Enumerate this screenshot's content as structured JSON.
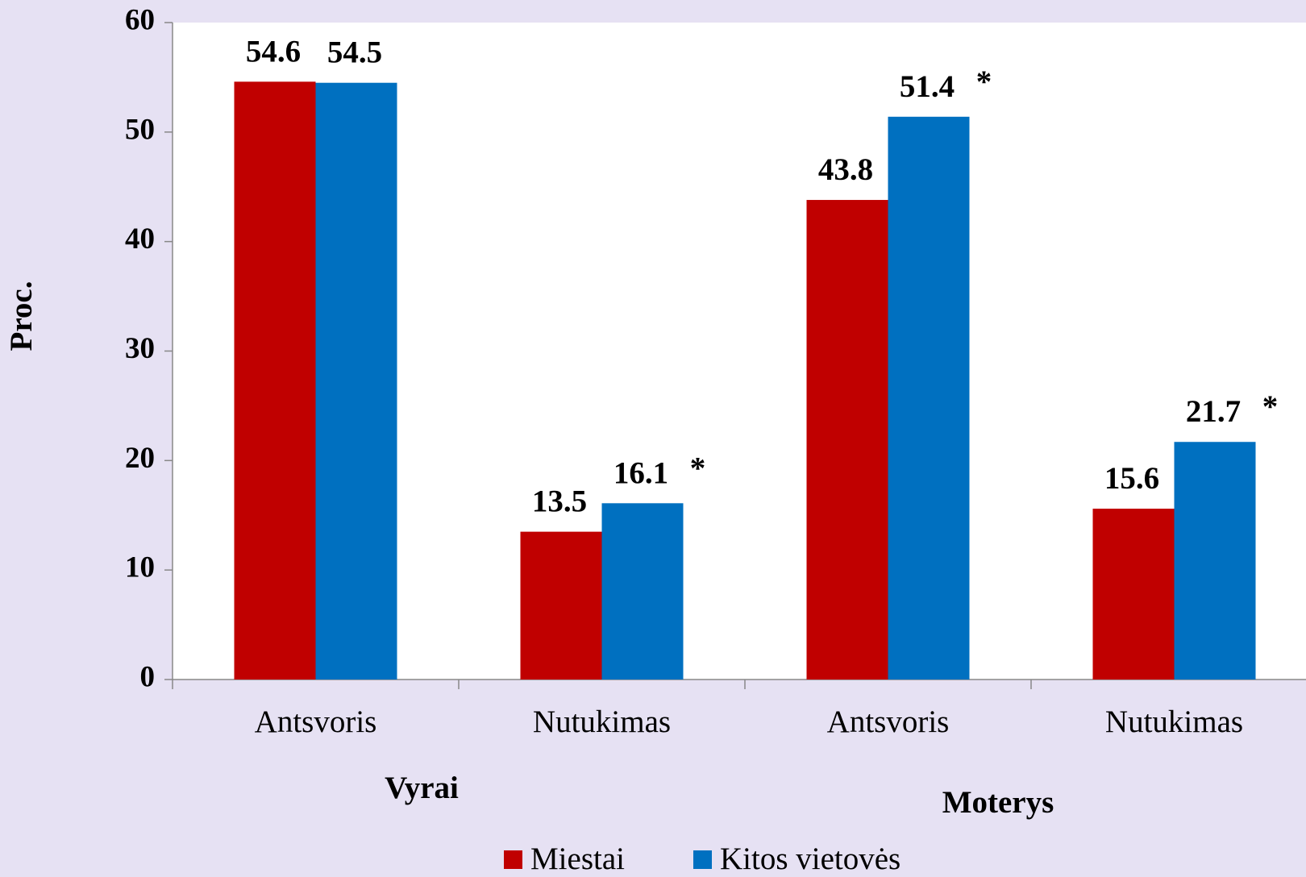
{
  "chart_data": {
    "type": "bar",
    "y_label": "Proc.",
    "categories": [
      "Antsvoris",
      "Nutukimas",
      "Antsvoris",
      "Nutukimas"
    ],
    "group_labels": [
      "Vyrai",
      "Moterys"
    ],
    "series": [
      {
        "name": "Miestai",
        "color": "#c00000",
        "values": [
          54.6,
          13.5,
          43.8,
          15.6
        ]
      },
      {
        "name": "Kitos vietovės",
        "color": "#0070c0",
        "values": [
          54.5,
          16.1,
          51.4,
          21.7
        ],
        "value_annotations": [
          null,
          "*",
          "*",
          "*"
        ]
      }
    ],
    "ylim": [
      0,
      60
    ],
    "yticks": [
      0,
      10,
      20,
      30,
      40,
      50,
      60
    ],
    "legend": "bottom"
  }
}
